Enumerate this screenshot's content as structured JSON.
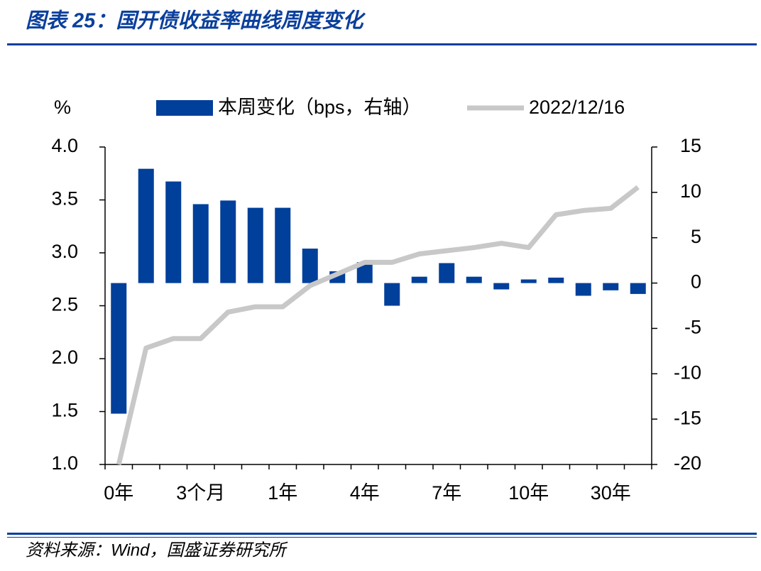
{
  "chart_data": {
    "type": "bar-line",
    "title": "图表 25：国开债收益率曲线周度变化",
    "source": "资料来源：Wind，国盛证券研究所",
    "y_label": "%",
    "categories": [
      "0年",
      null,
      null,
      "3个月",
      null,
      null,
      "1年",
      null,
      null,
      "4年",
      null,
      null,
      "7年",
      null,
      null,
      "10年",
      null,
      null,
      "30年",
      null
    ],
    "series": [
      {
        "name": "本周变化（bps，右轴）",
        "type": "bar",
        "axis": "y2",
        "color": "#003f9a",
        "values": [
          -14.4,
          12.6,
          11.2,
          8.7,
          9.1,
          8.3,
          8.3,
          3.8,
          1.3,
          2.3,
          -2.5,
          0.7,
          2.2,
          0.7,
          -0.7,
          0.4,
          0.6,
          -1.4,
          -0.8,
          -1.2
        ]
      },
      {
        "name": "2022/12/16",
        "type": "line",
        "color": "#c8c8c8",
        "values": [
          1.0,
          2.1,
          2.19,
          2.19,
          2.44,
          2.49,
          2.49,
          2.69,
          2.8,
          2.91,
          2.91,
          2.99,
          3.02,
          3.05,
          3.09,
          3.05,
          3.36,
          3.4,
          3.42,
          3.62
        ]
      }
    ],
    "ylim": [
      1.0,
      4.0
    ],
    "yticks": [
      {
        "value": 1.0,
        "label": "1.0"
      },
      1.5,
      {
        "value": 2.0,
        "label": "2.0"
      },
      2.5,
      {
        "value": 3.0,
        "label": "3.0"
      },
      3.5,
      {
        "value": 4.0,
        "label": "4.0"
      }
    ],
    "y2lim": [
      -20,
      15
    ],
    "y2ticks": [
      -20,
      -15,
      -10,
      -5,
      0,
      5,
      10,
      15
    ]
  }
}
